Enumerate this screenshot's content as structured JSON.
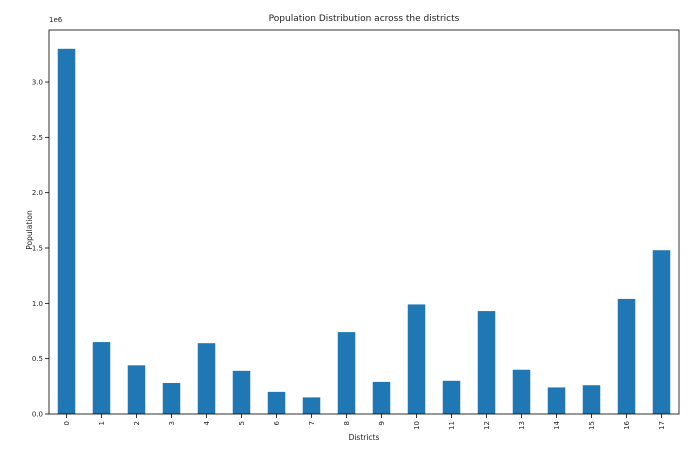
{
  "chart_data": {
    "type": "bar",
    "title": "Population Distribution across the districts",
    "xlabel": "Districts",
    "ylabel": "Population",
    "y_offset_text": "1e6",
    "categories": [
      "0",
      "1",
      "2",
      "3",
      "4",
      "5",
      "6",
      "7",
      "8",
      "9",
      "10",
      "11",
      "12",
      "13",
      "14",
      "15",
      "16",
      "17"
    ],
    "values": [
      3.3,
      0.65,
      0.44,
      0.28,
      0.64,
      0.39,
      0.2,
      0.15,
      0.74,
      0.29,
      0.99,
      0.3,
      0.93,
      0.4,
      0.24,
      0.26,
      1.04,
      1.48
    ],
    "value_scale": "1e6",
    "y_ticks": [
      0.0,
      0.5,
      1.0,
      1.5,
      2.0,
      2.5,
      3.0
    ],
    "y_tick_labels": [
      "0.0",
      "0.5",
      "1.0",
      "1.5",
      "2.0",
      "2.5",
      "3.0"
    ],
    "ylim": [
      0,
      3.47
    ],
    "x_tick_rotation": "vertical",
    "grid": false,
    "legend": "none",
    "bar_color": "#1f77b4"
  }
}
